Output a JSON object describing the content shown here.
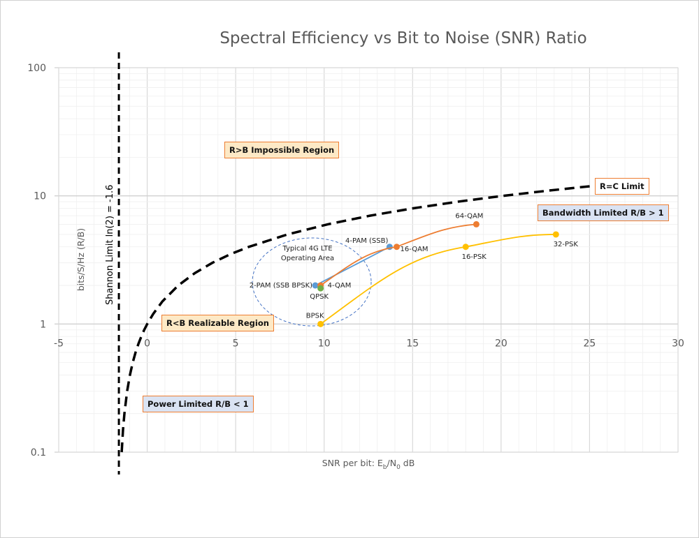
{
  "chart_data": {
    "type": "scatter",
    "title": "Spectral Efficiency vs Bit to Noise (SNR) Ratio",
    "xlabel_parts": [
      "SNR per bit: E",
      "b",
      "/N",
      "0",
      " dB"
    ],
    "ylabel": "bits/S/Hz (R/B)",
    "xlim": [
      -5,
      30
    ],
    "ylim": [
      0.1,
      100
    ],
    "yscale": "log",
    "grid": true,
    "x_ticks": [
      "-5",
      "0",
      "5",
      "10",
      "15",
      "20",
      "25",
      "30"
    ],
    "x_tick_values": [
      -5,
      0,
      5,
      10,
      15,
      20,
      25,
      30
    ],
    "y_ticks": [
      "0.1",
      "1",
      "10",
      "100"
    ],
    "y_tick_values": [
      0.1,
      1,
      10,
      100
    ],
    "shannon_limit": {
      "x": -1.6,
      "label": "Shannon Limit ln(2) = -1.6"
    },
    "capacity_curve": {
      "label": "R=C Limit",
      "r_values": [
        0.1,
        0.15,
        0.2,
        0.3,
        0.4,
        0.5,
        0.6,
        0.7,
        0.8,
        0.9,
        1,
        1.2,
        1.5,
        2,
        2.5,
        3,
        3.5,
        4,
        5,
        6,
        7,
        8,
        9,
        10,
        11,
        12
      ]
    },
    "series": [
      {
        "name": "PAM",
        "color": "#5b9bd5",
        "points": [
          {
            "label": "2-PAM (SSB BPSK)",
            "x": 9.5,
            "y": 2
          },
          {
            "label": "4-PAM (SSB)",
            "x": 13.7,
            "y": 4
          }
        ]
      },
      {
        "name": "QAM",
        "color": "#ed7d31",
        "points": [
          {
            "label": "4-QAM",
            "x": 9.8,
            "y": 2
          },
          {
            "label": "16-QAM",
            "x": 14.1,
            "y": 4
          },
          {
            "label": "64-QAM",
            "x": 18.6,
            "y": 6
          }
        ]
      },
      {
        "name": "QPSK",
        "color": "#70ad47",
        "points": [
          {
            "label": "QPSK",
            "x": 9.8,
            "y": 1.9
          }
        ]
      },
      {
        "name": "PSK",
        "color": "#ffc000",
        "points": [
          {
            "label": "BPSK",
            "x": 9.8,
            "y": 1
          },
          {
            "label": "16-PSK",
            "x": 18,
            "y": 4
          },
          {
            "label": "32-PSK",
            "x": 23.1,
            "y": 5
          }
        ]
      }
    ],
    "annotations": {
      "lte_area": "Typical 4G LTE",
      "lte_area_2": "Operating Area",
      "impossible": "R>B Impossible Region",
      "realizable": "R<B Realizable Region",
      "power_limited": "Power Limited R/B < 1",
      "bandwidth_limited": "Bandwidth Limited R/B > 1"
    },
    "colors": {
      "box_warm": "#fde9c6",
      "box_cool": "#dae3f3",
      "box_border": "#ed7d31",
      "grid": "#d9d9d9",
      "ellipse": "#4472c4"
    }
  }
}
